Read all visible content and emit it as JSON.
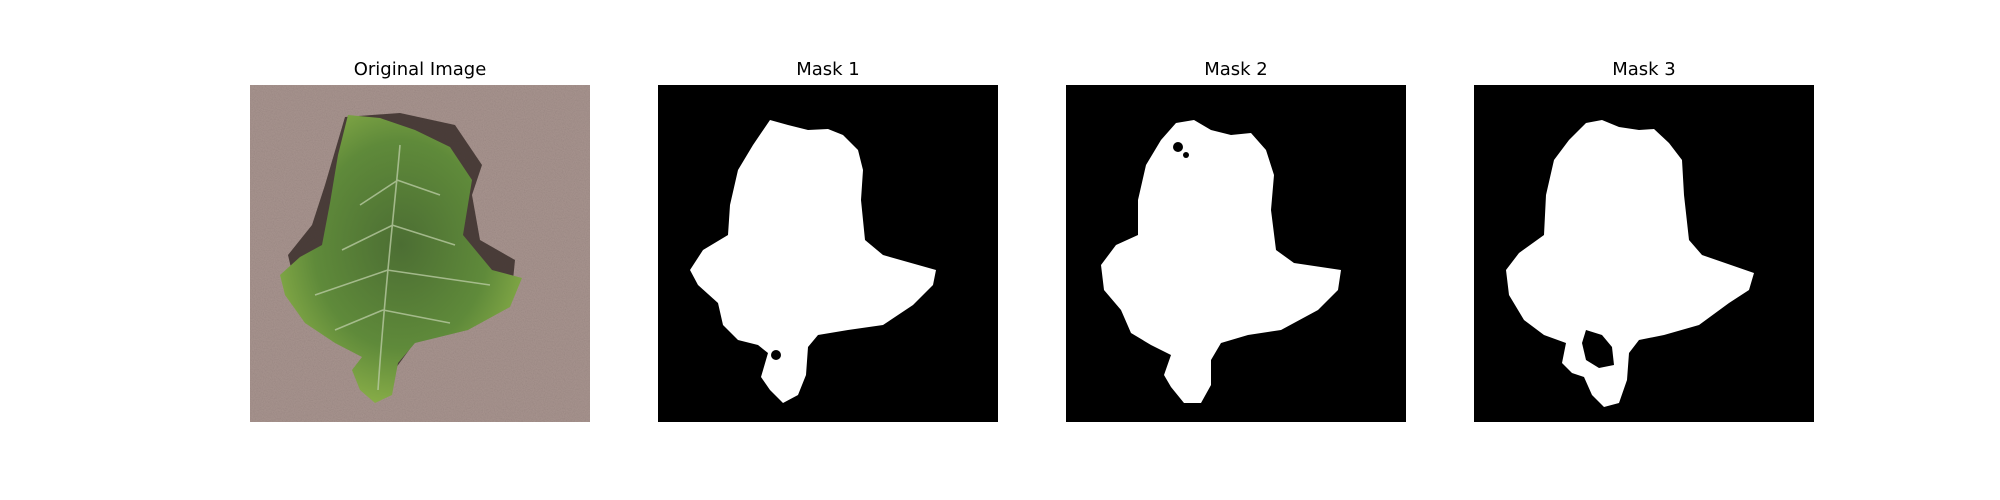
{
  "panels": [
    {
      "id": "original",
      "title": "Original Image",
      "kind": "photo"
    },
    {
      "id": "mask1",
      "title": "Mask 1",
      "kind": "mask"
    },
    {
      "id": "mask2",
      "title": "Mask 2",
      "kind": "mask"
    },
    {
      "id": "mask3",
      "title": "Mask 3",
      "kind": "mask"
    }
  ],
  "colors": {
    "background": "#ffffff",
    "mask_background": "#000000",
    "mask_foreground": "#ffffff",
    "carpet": "#a8948f",
    "leaf_dark": "#3f5f2c",
    "leaf_light": "#8fb34a",
    "shadow": "#3a2e2a"
  }
}
